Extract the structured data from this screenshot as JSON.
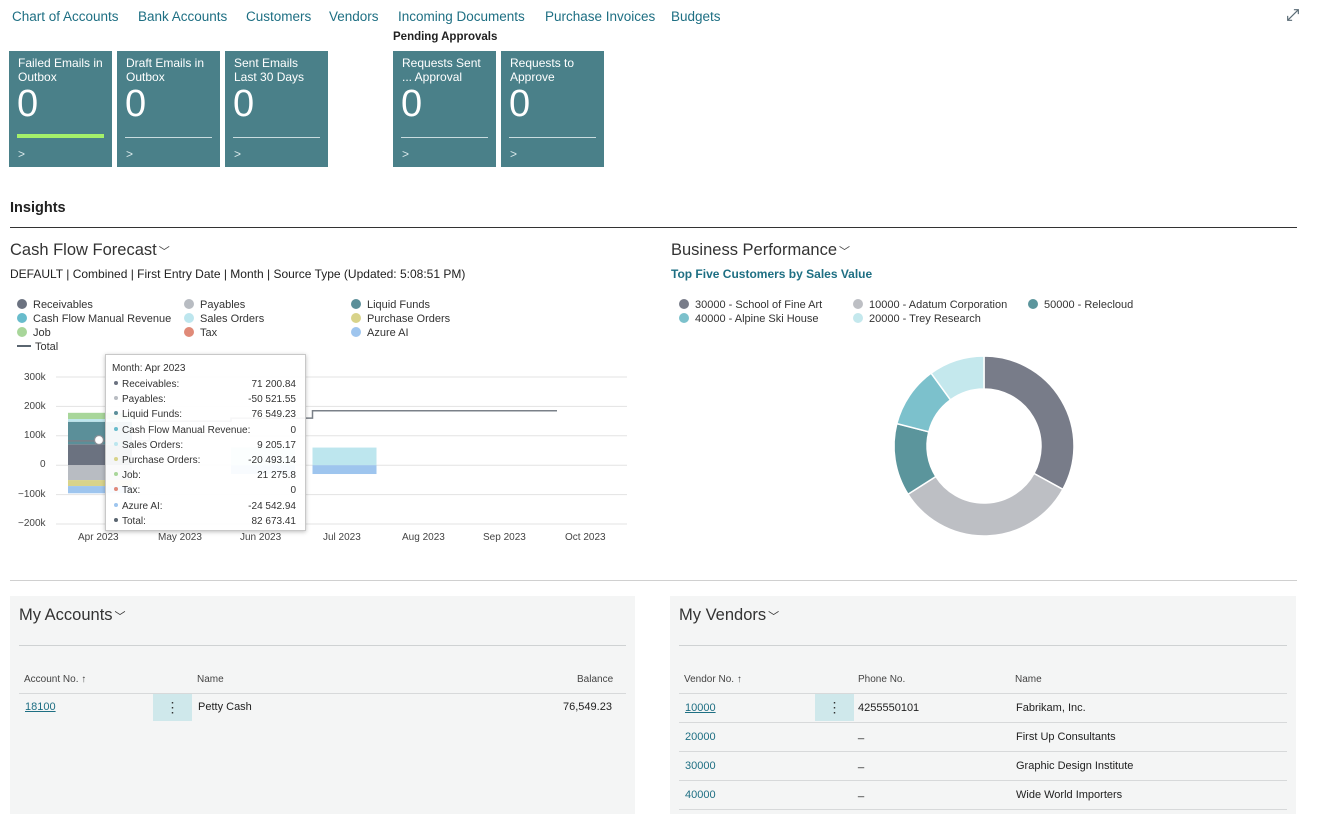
{
  "nav": {
    "links": [
      "Chart of Accounts",
      "Bank Accounts",
      "Customers",
      "Vendors",
      "Incoming Documents",
      "Purchase Invoices",
      "Budgets"
    ],
    "expand_icon": "expand-icon"
  },
  "tiles": [
    {
      "title": "Failed Emails in Outbox",
      "value": "0"
    },
    {
      "title": "Draft Emails in Outbox",
      "value": "0"
    },
    {
      "title": "Sent Emails Last 30 Days",
      "value": "0"
    },
    {
      "title": "Requests Sent ... Approval",
      "value": "0"
    },
    {
      "title": "Requests to Approve",
      "value": "0"
    }
  ],
  "pending_label": "Pending Approvals",
  "insights_label": "Insights",
  "cashflow": {
    "title": "Cash Flow Forecast",
    "subtitle": "DEFAULT | Combined | First Entry Date | Month | Source Type (Updated:  5:08:51 PM)",
    "legend": [
      {
        "label": "Receivables",
        "color": "#6b7280"
      },
      {
        "label": "Payables",
        "color": "#b8bcc2"
      },
      {
        "label": "Liquid Funds",
        "color": "#5b8f99"
      },
      {
        "label": "Cash Flow Manual Revenue",
        "color": "#68bccc"
      },
      {
        "label": "Sales Orders",
        "color": "#bde6ee"
      },
      {
        "label": "Purchase Orders",
        "color": "#d8d38a"
      },
      {
        "label": "Job",
        "color": "#a8d69a"
      },
      {
        "label": "Tax",
        "color": "#e08a78"
      },
      {
        "label": "Azure AI",
        "color": "#9ec5ee"
      },
      {
        "label": "Total",
        "color": "#5a6570"
      }
    ],
    "y_ticks": [
      "300k",
      "200k",
      "100k",
      "0",
      "−100k",
      "−200k"
    ],
    "x_ticks": [
      "Apr 2023",
      "May 2023",
      "Jun 2023",
      "Jul 2023",
      "Aug 2023",
      "Sep 2023",
      "Oct 2023"
    ],
    "tooltip": {
      "header": "Month: Apr 2023",
      "rows": [
        {
          "label": "Receivables:",
          "value": "71 200.84"
        },
        {
          "label": "Payables:",
          "value": "-50 521.55"
        },
        {
          "label": "Liquid Funds:",
          "value": "76 549.23"
        },
        {
          "label": "Cash Flow Manual Revenue:",
          "value": "0"
        },
        {
          "label": "Sales Orders:",
          "value": "9 205.17"
        },
        {
          "label": "Purchase Orders:",
          "value": "-20 493.14"
        },
        {
          "label": "Job:",
          "value": "21 275.8"
        },
        {
          "label": "Tax:",
          "value": "0"
        },
        {
          "label": "Azure AI:",
          "value": "-24 542.94"
        },
        {
          "label": "Total:",
          "value": "82 673.41"
        }
      ]
    }
  },
  "chart_data": {
    "type": "bar",
    "categories": [
      "Apr 2023",
      "May 2023",
      "Jun 2023",
      "Jul 2023",
      "Aug 2023",
      "Sep 2023",
      "Oct 2023"
    ],
    "ylim": [
      -200000,
      300000
    ],
    "series": [
      {
        "name": "Receivables",
        "values": [
          71200.84,
          0,
          0,
          0,
          0,
          0,
          0
        ]
      },
      {
        "name": "Payables",
        "values": [
          -50521.55,
          0,
          0,
          0,
          0,
          0,
          0
        ]
      },
      {
        "name": "Liquid Funds",
        "values": [
          76549.23,
          0,
          0,
          0,
          0,
          0,
          0
        ]
      },
      {
        "name": "Cash Flow Manual Revenue",
        "values": [
          0,
          0,
          0,
          0,
          0,
          0,
          0
        ]
      },
      {
        "name": "Sales Orders",
        "values": [
          9205.17,
          0,
          60000,
          60000,
          0,
          0,
          0
        ]
      },
      {
        "name": "Purchase Orders",
        "values": [
          -20493.14,
          0,
          0,
          0,
          0,
          0,
          0
        ]
      },
      {
        "name": "Job",
        "values": [
          21275.8,
          0,
          0,
          0,
          0,
          0,
          0
        ]
      },
      {
        "name": "Tax",
        "values": [
          0,
          0,
          0,
          0,
          0,
          0,
          0
        ]
      },
      {
        "name": "Azure AI",
        "values": [
          -24542.94,
          0,
          -30000,
          -30000,
          0,
          0,
          0
        ]
      },
      {
        "name": "Total",
        "values": [
          82673.41,
          150000,
          160000,
          185000,
          185000,
          185000,
          null
        ]
      }
    ]
  },
  "business": {
    "title": "Business Performance",
    "subtitle": "Top Five Customers by Sales Value",
    "legend": [
      {
        "label": "30000 - School of Fine Art",
        "color": "#787c89"
      },
      {
        "label": "10000 - Adatum Corporation",
        "color": "#bdbfc4"
      },
      {
        "label": "50000 - Relecloud",
        "color": "#5b959c"
      },
      {
        "label": "40000 - Alpine Ski House",
        "color": "#7cc1cc"
      },
      {
        "label": "20000 - Trey Research",
        "color": "#c4e8ed"
      }
    ],
    "slices": [
      0.33,
      0.33,
      0.13,
      0.11,
      0.1
    ]
  },
  "accounts": {
    "title": "My Accounts",
    "columns": [
      "Account No. ↑",
      "Name",
      "Balance"
    ],
    "rows": [
      {
        "no": "18100",
        "name": "Petty Cash",
        "balance": "76,549.23"
      }
    ]
  },
  "vendors": {
    "title": "My Vendors",
    "columns": [
      "Vendor No. ↑",
      "Phone No.",
      "Name"
    ],
    "rows": [
      {
        "no": "10000",
        "phone": "4255550101",
        "name": "Fabrikam, Inc."
      },
      {
        "no": "20000",
        "phone": "_",
        "name": "First Up Consultants"
      },
      {
        "no": "30000",
        "phone": "_",
        "name": "Graphic Design Institute"
      },
      {
        "no": "40000",
        "phone": "_",
        "name": "Wide World Importers"
      }
    ]
  }
}
